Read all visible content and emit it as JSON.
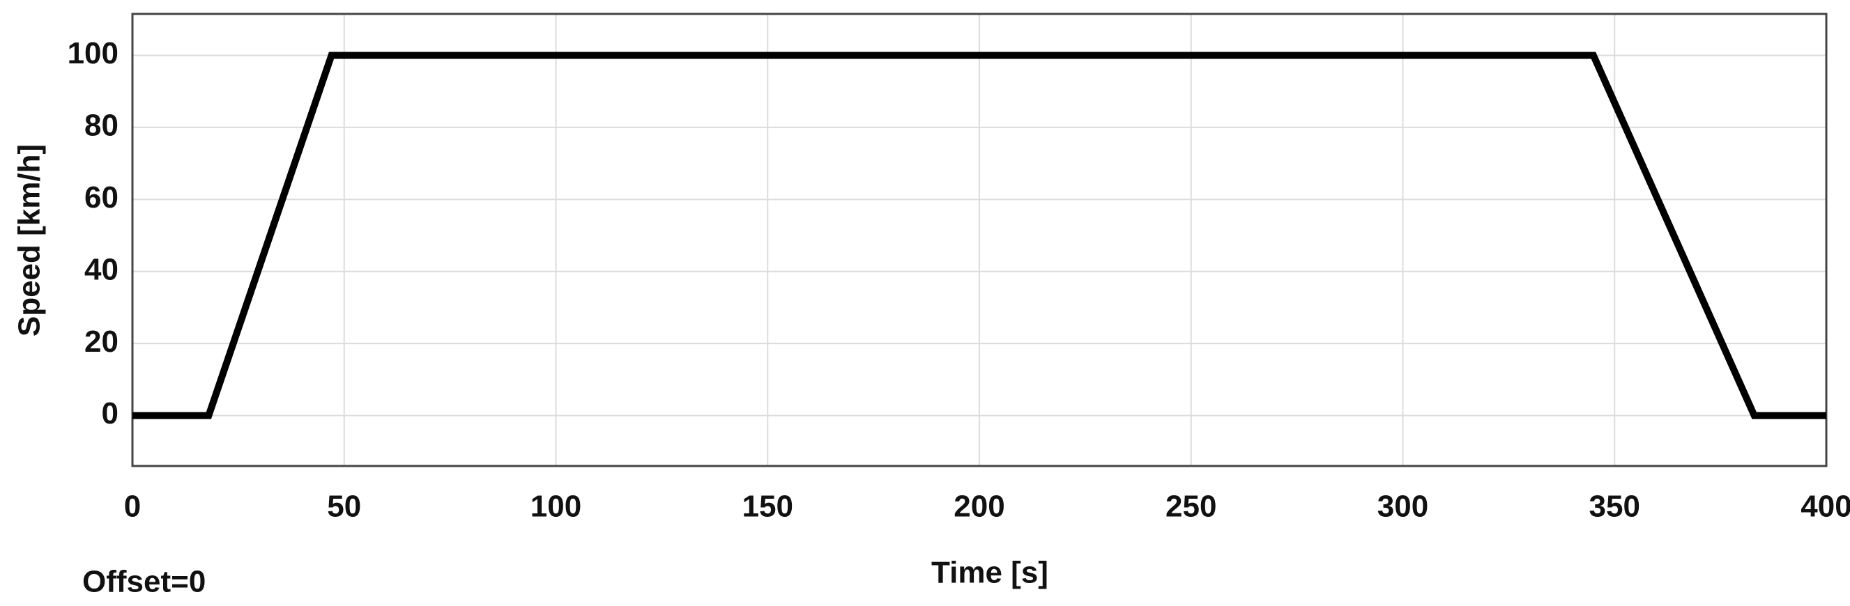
{
  "chart_data": {
    "type": "line",
    "x_label": "Time [s]",
    "y_label": "Speed [km/h]",
    "annotation": "Offset=0",
    "x": [
      0,
      18,
      47,
      345,
      383,
      400
    ],
    "series": [
      {
        "name": "Speed",
        "color": "#000000",
        "values": [
          0,
          0,
          100,
          100,
          0,
          0
        ]
      }
    ],
    "xlim": [
      0,
      400
    ],
    "ylim": [
      -14,
      111.5
    ],
    "xticks": [
      0,
      50,
      100,
      150,
      200,
      250,
      300,
      350,
      400
    ],
    "yticks": [
      0,
      20,
      40,
      60,
      80,
      100
    ],
    "grid": true
  }
}
